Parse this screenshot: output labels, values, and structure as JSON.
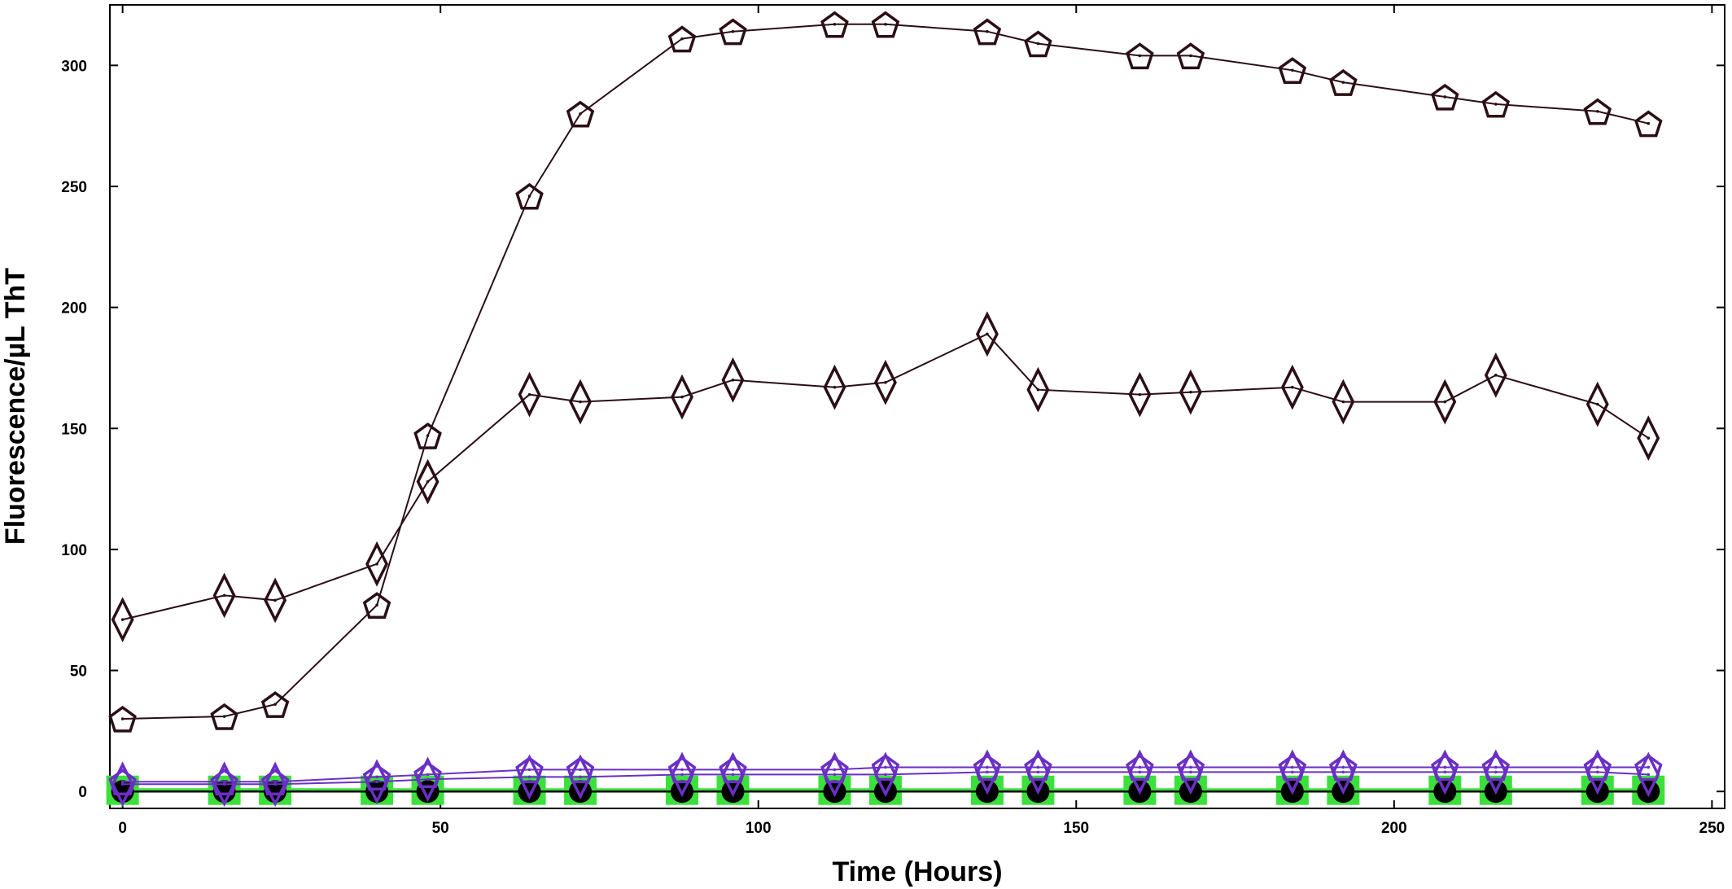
{
  "chart_data": {
    "type": "line",
    "title": "",
    "xlabel": "Time (Hours)",
    "ylabel": "Fluorescence/µL ThT",
    "xlim": [
      -2,
      252
    ],
    "ylim": [
      -7,
      325
    ],
    "xticks": [
      0,
      50,
      100,
      150,
      200,
      250
    ],
    "yticks": [
      0,
      50,
      100,
      150,
      200,
      250,
      300
    ],
    "grid": false,
    "legend": "none",
    "x": [
      0,
      16,
      24,
      40,
      48,
      64,
      72,
      88,
      96,
      112,
      120,
      136,
      144,
      160,
      168,
      184,
      192,
      208,
      216,
      232,
      240
    ],
    "series": [
      {
        "marker": "pentagon",
        "color": "#2b0f16",
        "values": [
          30,
          31,
          36,
          77,
          147,
          246,
          280,
          311,
          314,
          317,
          317,
          314,
          309,
          304,
          304,
          298,
          293,
          287,
          284,
          281,
          276
        ]
      },
      {
        "marker": "diamond",
        "color": "#2b0f16",
        "values": [
          71,
          81,
          79,
          94,
          128,
          164,
          161,
          163,
          170,
          167,
          169,
          189,
          166,
          164,
          165,
          167,
          161,
          161,
          172,
          160,
          146
        ]
      },
      {
        "marker": "pentagon",
        "color": "#6a2fc4",
        "values": [
          4,
          4,
          4,
          6,
          7,
          9,
          9,
          9,
          9,
          9,
          10,
          10,
          10,
          10,
          10,
          10,
          10,
          10,
          10,
          10,
          10
        ]
      },
      {
        "marker": "diamond",
        "color": "#6a2fc4",
        "values": [
          3,
          3,
          3,
          4,
          5,
          6,
          6,
          7,
          7,
          7,
          7,
          8,
          8,
          8,
          8,
          8,
          8,
          8,
          8,
          8,
          7
        ]
      },
      {
        "marker": "square",
        "color": "#3ce03c",
        "values": [
          0.5,
          0.5,
          0.5,
          0.5,
          0.5,
          0.5,
          0.5,
          0.5,
          0.5,
          0.5,
          0.5,
          0.5,
          0.5,
          0.5,
          0.5,
          0.5,
          0.5,
          0.5,
          0.5,
          0.5,
          0.5
        ]
      },
      {
        "marker": "circle",
        "color": "#000000",
        "values": [
          0,
          0,
          0,
          0,
          0,
          0,
          0,
          0,
          0,
          0,
          0,
          0,
          0,
          0,
          0,
          0,
          0,
          0,
          0,
          0,
          0
        ]
      }
    ]
  }
}
